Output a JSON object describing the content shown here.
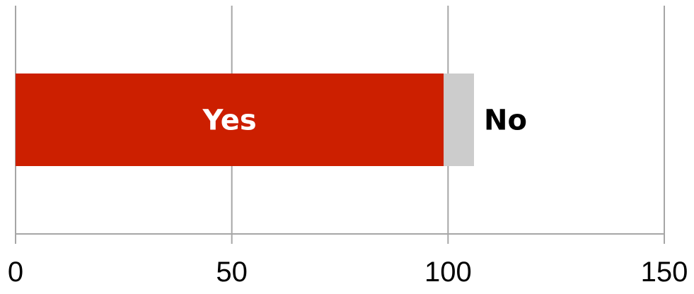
{
  "chart_data": {
    "type": "bar",
    "orientation": "horizontal",
    "stacked": true,
    "xlim": [
      0,
      150
    ],
    "x_ticks": [
      0,
      50,
      100,
      150
    ],
    "x_tick_labels": [
      "0",
      "50",
      "100",
      "150"
    ],
    "grid": true,
    "legend": "none",
    "categories": [
      ""
    ],
    "series": [
      {
        "name": "Yes",
        "values": [
          99
        ],
        "color": "#cc1f00",
        "label_color": "#ffffff",
        "label_position": "inside"
      },
      {
        "name": "No",
        "values": [
          7
        ],
        "color": "#cccccc",
        "label_color": "#000000",
        "label_position": "outside"
      }
    ]
  }
}
